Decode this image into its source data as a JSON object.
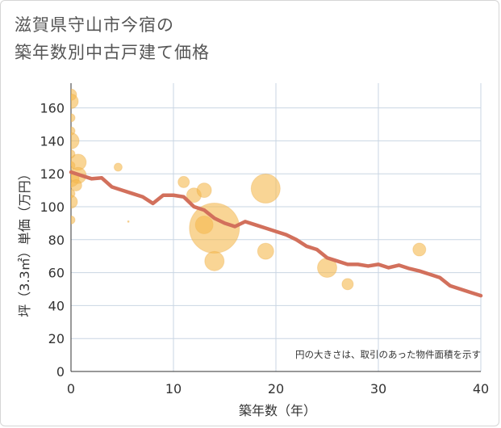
{
  "chart_data": {
    "type": "scatter",
    "title_lines": [
      "滋賀県守山市今宿の",
      "築年数別中古戸建て価格"
    ],
    "xlabel": "築年数（年）",
    "ylabel": "坪（3.3㎡）単価（万円）",
    "xlim": [
      0,
      40
    ],
    "ylim": [
      0,
      175
    ],
    "x_ticks": [
      0,
      10,
      20,
      30,
      40
    ],
    "y_ticks": [
      0,
      20,
      40,
      60,
      80,
      100,
      120,
      140,
      160
    ],
    "note": "円の大きさは、取引のあった物件面積を示す",
    "colors": {
      "bubble": "#f5b94f",
      "bubble_stroke": "#e8a53a",
      "line": "#d2705c",
      "grid": "#c9d6e3",
      "axis": "#333333"
    },
    "bubbles": [
      {
        "x": 0,
        "y": 168,
        "size": 7
      },
      {
        "x": 0,
        "y": 164,
        "size": 9
      },
      {
        "x": 0,
        "y": 154,
        "size": 5
      },
      {
        "x": 0,
        "y": 146,
        "size": 5
      },
      {
        "x": 0,
        "y": 140,
        "size": 10
      },
      {
        "x": 0,
        "y": 132,
        "size": 5
      },
      {
        "x": 0,
        "y": 125,
        "size": 5
      },
      {
        "x": 0,
        "y": 117,
        "size": 10
      },
      {
        "x": 0,
        "y": 108,
        "size": 5
      },
      {
        "x": 0,
        "y": 103,
        "size": 8
      },
      {
        "x": 0,
        "y": 92,
        "size": 5
      },
      {
        "x": 0.7,
        "y": 127,
        "size": 10
      },
      {
        "x": 0.7,
        "y": 119,
        "size": 10
      },
      {
        "x": 0.5,
        "y": 113,
        "size": 7
      },
      {
        "x": 4.6,
        "y": 124,
        "size": 5
      },
      {
        "x": 5.6,
        "y": 91,
        "size": 1
      },
      {
        "x": 11,
        "y": 115,
        "size": 7
      },
      {
        "x": 12,
        "y": 107,
        "size": 9
      },
      {
        "x": 13,
        "y": 110,
        "size": 9
      },
      {
        "x": 13,
        "y": 89,
        "size": 11
      },
      {
        "x": 14,
        "y": 87,
        "size": 31
      },
      {
        "x": 14,
        "y": 67,
        "size": 12
      },
      {
        "x": 19,
        "y": 111,
        "size": 18
      },
      {
        "x": 19,
        "y": 73,
        "size": 10
      },
      {
        "x": 25,
        "y": 63,
        "size": 12
      },
      {
        "x": 27,
        "y": 53,
        "size": 7
      },
      {
        "x": 34,
        "y": 74,
        "size": 8
      }
    ],
    "line": {
      "x": [
        0,
        1,
        2,
        3,
        4,
        5,
        6,
        7,
        8,
        9,
        10,
        11,
        12,
        13,
        14,
        15,
        16,
        17,
        18,
        19,
        20,
        21,
        22,
        23,
        24,
        25,
        26,
        27,
        28,
        29,
        30,
        31,
        32,
        33,
        34,
        35,
        36,
        37,
        38,
        39,
        40
      ],
      "y": [
        121,
        119,
        117,
        117.5,
        112,
        110,
        108,
        106,
        102,
        107,
        107,
        106,
        100,
        98,
        93,
        90,
        88,
        91,
        89,
        87,
        85,
        83,
        80,
        76,
        74,
        69,
        67,
        65,
        65,
        64,
        65,
        63,
        64.5,
        62.5,
        61,
        59,
        57,
        52,
        50,
        48,
        46
      ]
    }
  }
}
